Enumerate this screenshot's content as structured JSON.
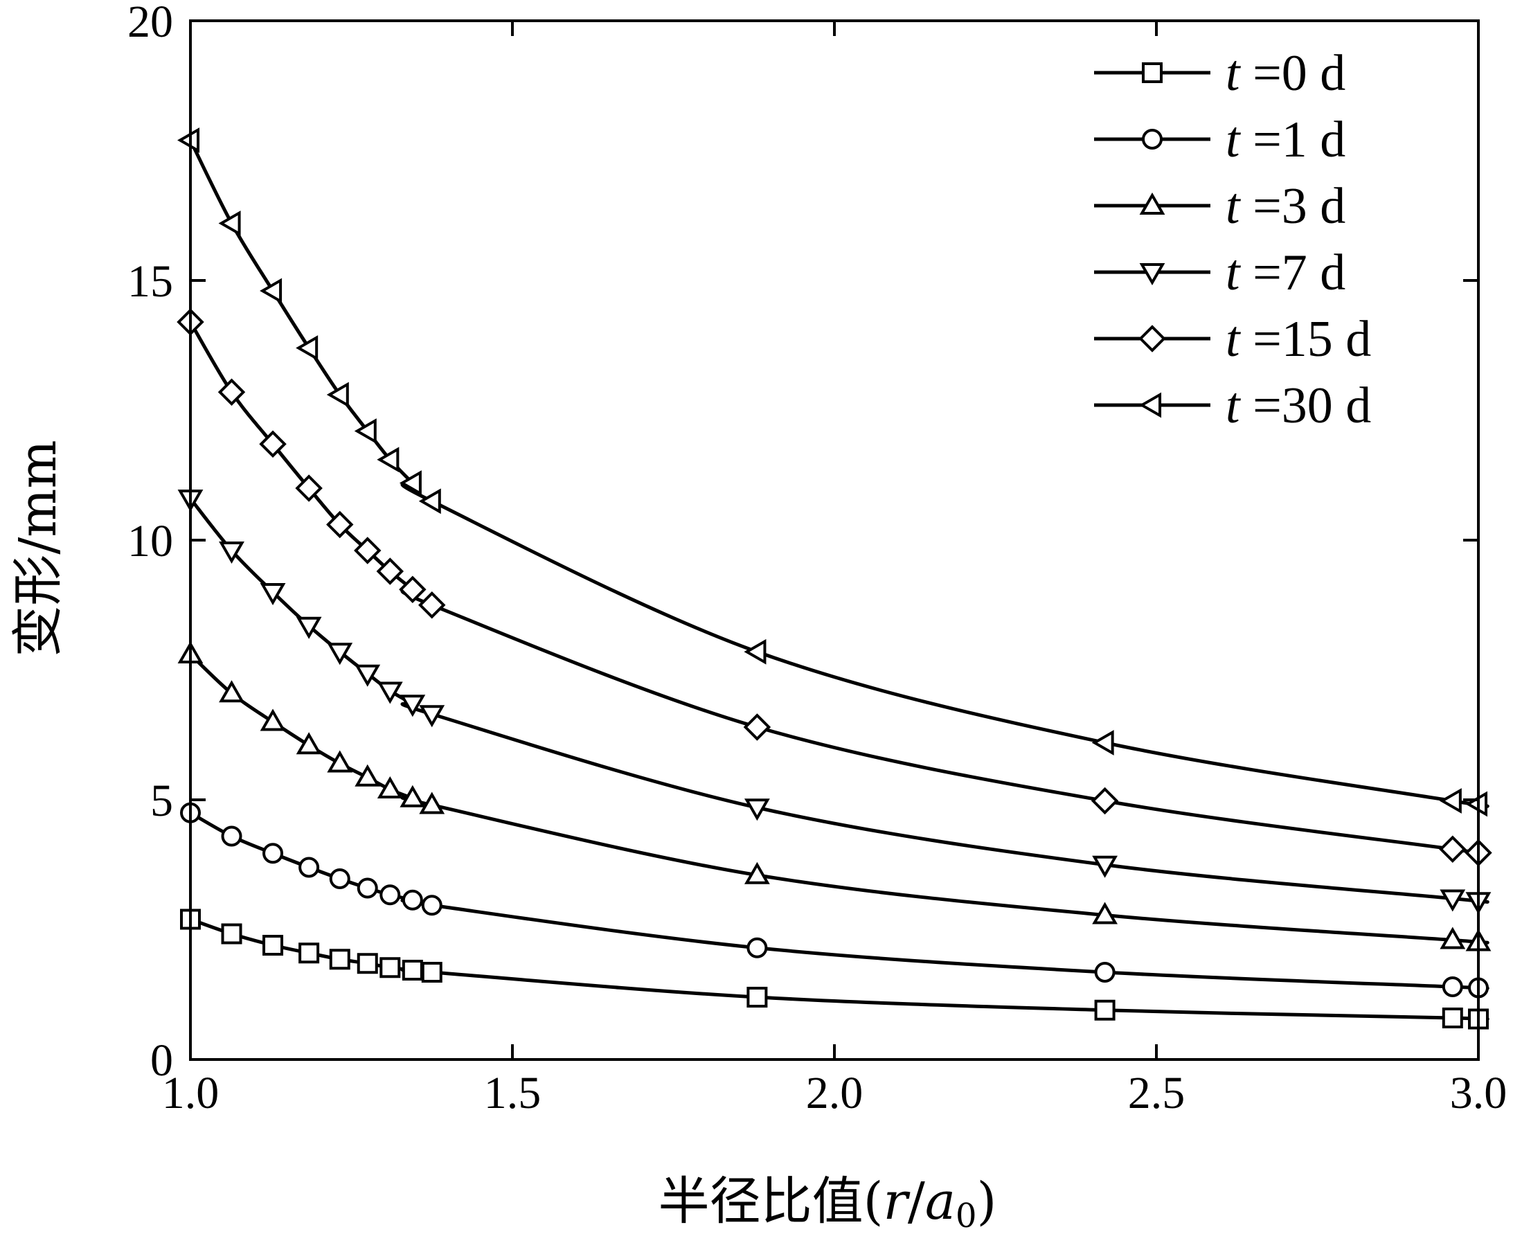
{
  "chart_data": {
    "type": "line",
    "xlabel": {
      "prefix": "半径比值(",
      "r": "r",
      "slash": "/",
      "a": "a",
      "sub": "0",
      "suffix": ")"
    },
    "ylabel": "变形/mm",
    "xlim": [
      1.0,
      3.0
    ],
    "ylim": [
      0,
      20
    ],
    "xticks": [
      1.0,
      1.5,
      2.0,
      2.5,
      3.0
    ],
    "xtick_labels": [
      "1.0",
      "1.5",
      "2.0",
      "2.5",
      "3.0"
    ],
    "yticks": [
      0,
      5,
      10,
      15,
      20
    ],
    "ytick_labels": [
      "0",
      "5",
      "10",
      "15",
      "20"
    ],
    "legend_position": "top-right",
    "line_color": "#000000",
    "series": [
      {
        "name": "t =0 d",
        "t_label": "t",
        "rest_label": " =0 d",
        "marker": "square",
        "x": [
          1.0,
          1.064,
          1.128,
          1.184,
          1.232,
          1.275,
          1.31,
          1.345,
          1.375,
          1.88,
          2.42,
          2.96,
          3.0
        ],
        "y": [
          2.7,
          2.42,
          2.2,
          2.05,
          1.93,
          1.85,
          1.77,
          1.72,
          1.68,
          1.2,
          0.95,
          0.8,
          0.78
        ]
      },
      {
        "name": "t =1 d",
        "t_label": "t",
        "rest_label": " =1 d",
        "marker": "circle",
        "x": [
          1.0,
          1.064,
          1.128,
          1.184,
          1.232,
          1.275,
          1.31,
          1.345,
          1.375,
          1.88,
          2.42,
          2.96,
          3.0
        ],
        "y": [
          4.75,
          4.3,
          3.97,
          3.7,
          3.48,
          3.3,
          3.17,
          3.07,
          2.97,
          2.15,
          1.68,
          1.4,
          1.38
        ]
      },
      {
        "name": "t =3 d",
        "t_label": "t",
        "rest_label": " =3 d",
        "marker": "triangle-up",
        "x": [
          1.0,
          1.064,
          1.128,
          1.184,
          1.232,
          1.275,
          1.31,
          1.345,
          1.375,
          1.88,
          2.42,
          2.96,
          3.0
        ],
        "y": [
          7.8,
          7.05,
          6.5,
          6.05,
          5.7,
          5.43,
          5.2,
          5.03,
          4.9,
          3.55,
          2.78,
          2.3,
          2.26
        ]
      },
      {
        "name": "t =7 d",
        "t_label": "t",
        "rest_label": " =7 d",
        "marker": "triangle-down",
        "x": [
          1.0,
          1.064,
          1.128,
          1.184,
          1.232,
          1.275,
          1.31,
          1.345,
          1.375,
          1.88,
          2.42,
          2.96,
          3.0
        ],
        "y": [
          10.8,
          9.8,
          9.0,
          8.35,
          7.85,
          7.43,
          7.1,
          6.85,
          6.65,
          4.85,
          3.75,
          3.1,
          3.05
        ]
      },
      {
        "name": "t =15 d",
        "t_label": "t",
        "rest_label": " =15 d",
        "marker": "diamond",
        "x": [
          1.0,
          1.064,
          1.128,
          1.184,
          1.232,
          1.275,
          1.31,
          1.345,
          1.375,
          1.88,
          2.42,
          2.96,
          3.0
        ],
        "y": [
          14.2,
          12.85,
          11.85,
          11.0,
          10.3,
          9.8,
          9.4,
          9.05,
          8.75,
          6.4,
          4.98,
          4.05,
          3.98
        ]
      },
      {
        "name": "t =30 d",
        "t_label": "t",
        "rest_label": " =30 d",
        "marker": "triangle-left",
        "x": [
          1.0,
          1.064,
          1.128,
          1.184,
          1.232,
          1.275,
          1.31,
          1.345,
          1.375,
          1.88,
          2.42,
          2.96,
          3.0
        ],
        "y": [
          17.7,
          16.1,
          14.8,
          13.7,
          12.8,
          12.1,
          11.55,
          11.1,
          10.75,
          7.85,
          6.1,
          4.98,
          4.92
        ]
      }
    ]
  }
}
